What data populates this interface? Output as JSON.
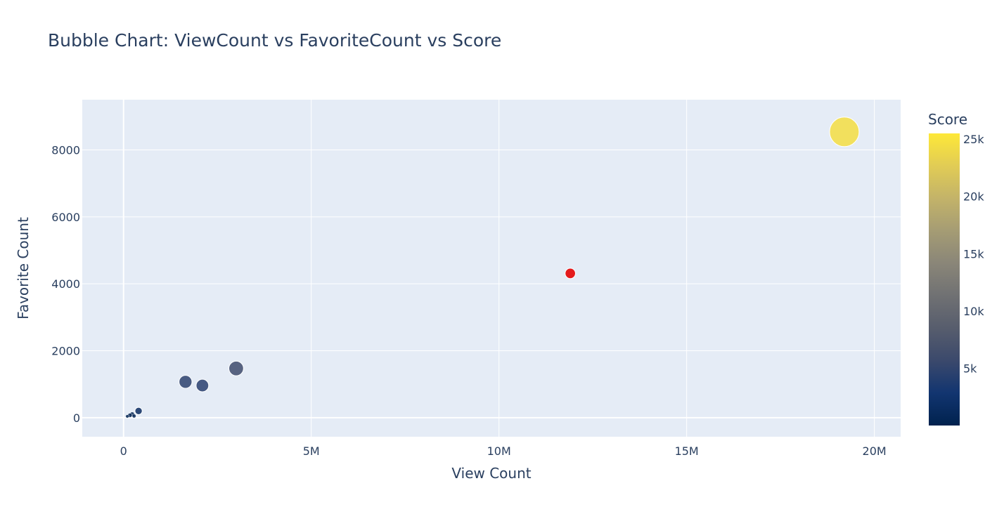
{
  "chart_data": {
    "type": "scatter",
    "title": "Bubble Chart: ViewCount vs FavoriteCount vs Score",
    "xlabel": "View Count",
    "ylabel": "Favorite Count",
    "xlim": [
      -1100000,
      20700000
    ],
    "ylim": [
      -570,
      9500
    ],
    "x_ticks": [
      {
        "value": 0,
        "label": "0"
      },
      {
        "value": 5000000,
        "label": "5M"
      },
      {
        "value": 10000000,
        "label": "10M"
      },
      {
        "value": 15000000,
        "label": "15M"
      },
      {
        "value": 20000000,
        "label": "20M"
      }
    ],
    "y_ticks": [
      {
        "value": 0,
        "label": "0"
      },
      {
        "value": 2000,
        "label": "2000"
      },
      {
        "value": 4000,
        "label": "4000"
      },
      {
        "value": 6000,
        "label": "6000"
      },
      {
        "value": 8000,
        "label": "8000"
      }
    ],
    "grid": true,
    "colorbar": {
      "title": "Score",
      "range": [
        0,
        25500
      ],
      "colorscale": [
        "#00224e",
        "#123570",
        "#3b496c",
        "#575d6d",
        "#707173",
        "#8a8678",
        "#a59c74",
        "#c3b369",
        "#e1cc55",
        "#fee838"
      ],
      "ticks": [
        {
          "value": 5000,
          "label": "5k"
        },
        {
          "value": 10000,
          "label": "10k"
        },
        {
          "value": 15000,
          "label": "15k"
        },
        {
          "value": 20000,
          "label": "20k"
        },
        {
          "value": 25000,
          "label": "25k"
        }
      ]
    },
    "points": [
      {
        "x": 19200000,
        "y": 8540,
        "score": 24500,
        "color": ""
      },
      {
        "x": 11900000,
        "y": 4310,
        "score": 3000,
        "color": "#e41a1c"
      },
      {
        "x": 3000000,
        "y": 1470,
        "score": 6000,
        "color": ""
      },
      {
        "x": 1650000,
        "y": 1070,
        "score": 4700,
        "color": ""
      },
      {
        "x": 2100000,
        "y": 960,
        "score": 4400,
        "color": ""
      },
      {
        "x": 400000,
        "y": 200,
        "score": 1500,
        "color": ""
      },
      {
        "x": 230000,
        "y": 100,
        "score": 600,
        "color": ""
      },
      {
        "x": 170000,
        "y": 70,
        "score": 500,
        "color": ""
      },
      {
        "x": 280000,
        "y": 50,
        "score": 400,
        "color": ""
      },
      {
        "x": 100000,
        "y": 40,
        "score": 300,
        "color": ""
      }
    ]
  }
}
